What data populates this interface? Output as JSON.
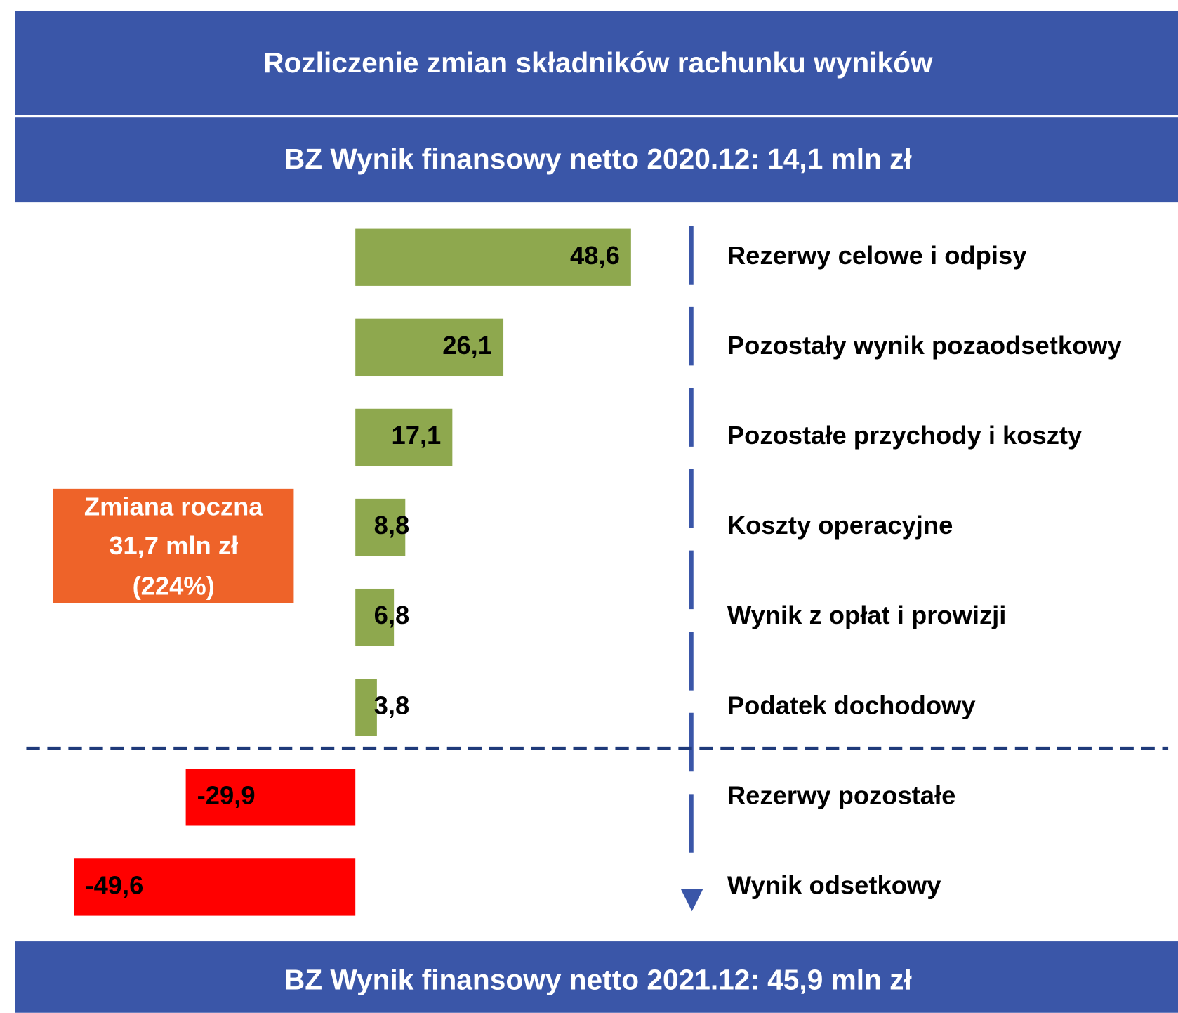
{
  "chart_data": {
    "type": "bar",
    "title": "Rozliczenie zmian składników rachunku wyników",
    "subtitle": "BZ Wynik finansowy netto 2020.12: 14,1 mln zł",
    "footer": "BZ Wynik finansowy netto 2021.12: 45,9 mln zł",
    "annotation": [
      "Zmiana roczna",
      "31,7 mln zł",
      "(224%)"
    ],
    "categories": [
      "Rezerwy celowe i odpisy",
      "Pozostały wynik pozaodsetkowy",
      "Pozostałe przychody i koszty",
      "Koszty operacyjne",
      "Wynik z opłat i prowizji",
      "Podatek dochodowy",
      "Rezerwy pozostałe",
      "Wynik odsetkowy"
    ],
    "values": [
      48.6,
      26.1,
      17.1,
      8.8,
      6.8,
      3.8,
      -29.9,
      -49.6
    ],
    "value_labels": [
      "48,6",
      "26,1",
      "17,1",
      "8,8",
      "6,8",
      "3,8",
      "-29,9",
      "-49,6"
    ],
    "color": "#8ea84e",
    "negative_color": "#ff0000"
  }
}
